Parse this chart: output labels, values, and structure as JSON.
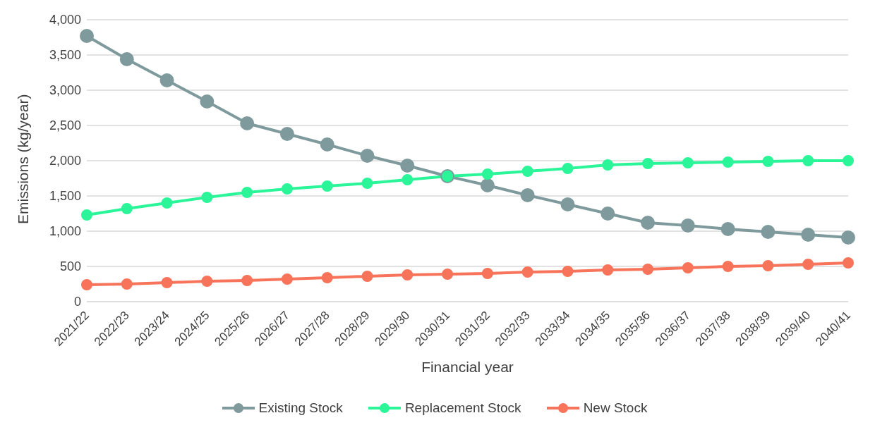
{
  "chart_data": {
    "type": "line",
    "xlabel": "Financial year",
    "ylabel": "Emissions (kg/year)",
    "categories": [
      "2021/22",
      "2022/23",
      "2023/24",
      "2024/25",
      "2025/26",
      "2026/27",
      "2027/28",
      "2028/29",
      "2029/30",
      "2030/31",
      "2031/32",
      "2032/33",
      "2033/34",
      "2034/35",
      "2035/36",
      "2036/37",
      "2037/38",
      "2038/39",
      "2039/40",
      "2040/41"
    ],
    "series": [
      {
        "name": "Existing Stock",
        "color": "#7f9a9c",
        "values": [
          3770,
          3440,
          3140,
          2840,
          2530,
          2380,
          2230,
          2070,
          1930,
          1780,
          1650,
          1510,
          1380,
          1250,
          1120,
          1080,
          1030,
          990,
          950,
          910
        ]
      },
      {
        "name": "Replacement Stock",
        "color": "#2af598",
        "values": [
          1230,
          1320,
          1400,
          1480,
          1550,
          1600,
          1640,
          1680,
          1730,
          1780,
          1810,
          1850,
          1890,
          1940,
          1960,
          1970,
          1980,
          1990,
          2000,
          2000
        ]
      },
      {
        "name": "New Stock",
        "color": "#f7735a",
        "values": [
          240,
          250,
          270,
          290,
          300,
          320,
          340,
          360,
          380,
          390,
          400,
          420,
          430,
          450,
          460,
          480,
          500,
          510,
          530,
          550
        ]
      }
    ],
    "ylim": [
      0,
      4000
    ],
    "yticks": [
      0,
      500,
      {
        "value": 1000,
        "label": "1,000"
      },
      {
        "value": 1500,
        "label": "1,500"
      },
      {
        "value": 2000,
        "label": "2,000"
      },
      {
        "value": 2500,
        "label": "2,500"
      },
      {
        "value": 3000,
        "label": "3,000"
      },
      {
        "value": 3500,
        "label": "3,500"
      },
      {
        "value": 4000,
        "label": "4,000"
      }
    ],
    "grid": "y",
    "legend": "bottom",
    "marker": "circle",
    "line_style": "solid"
  }
}
